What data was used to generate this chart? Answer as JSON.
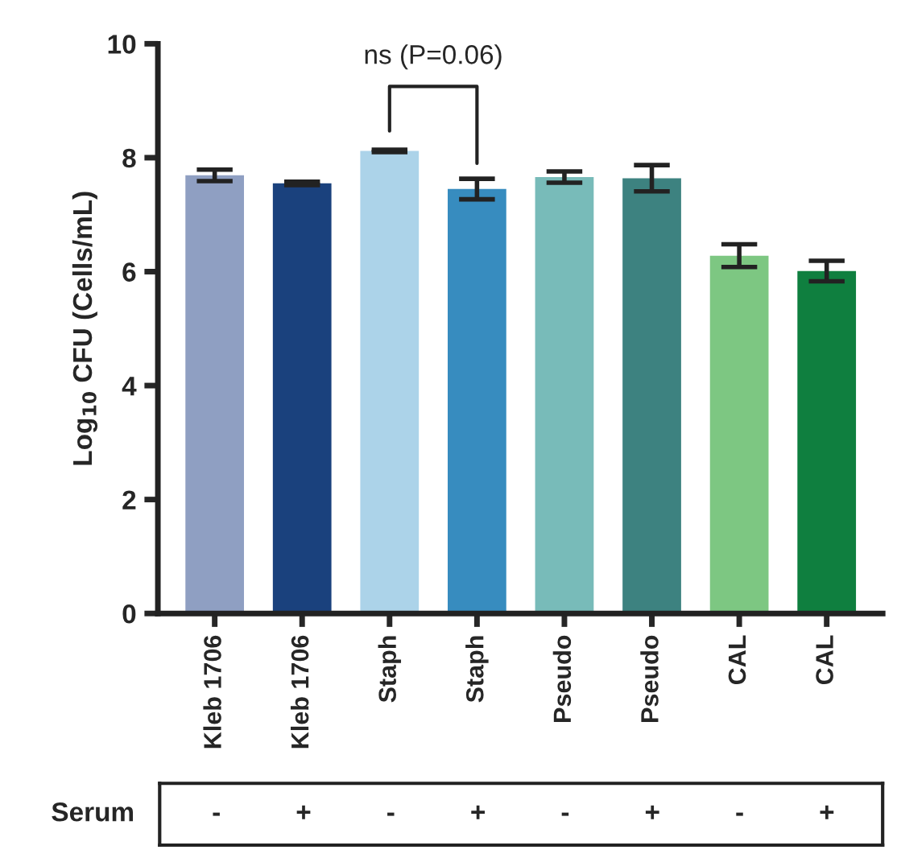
{
  "chart_data": {
    "type": "bar",
    "ylabel": "Log$_{10}$ CFU (Cells/mL)",
    "categories": [
      "Kleb 1706",
      "Kleb 1706",
      "Staph",
      "Staph",
      "Pseudo",
      "Pseudo",
      "CAL",
      "CAL"
    ],
    "values": [
      7.69,
      7.55,
      8.12,
      7.45,
      7.66,
      7.64,
      6.28,
      6.01
    ],
    "errors": [
      0.1,
      0.03,
      0.02,
      0.18,
      0.1,
      0.23,
      0.2,
      0.18
    ],
    "colors": [
      "#8f9fc2",
      "#1a417d",
      "#acd3e9",
      "#378cbf",
      "#78bbb9",
      "#3d8280",
      "#7dc782",
      "#0f7f3f"
    ],
    "ylim": [
      0,
      10
    ],
    "yticks": [
      0,
      2,
      4,
      6,
      8,
      10
    ],
    "grid": false,
    "legend": false,
    "annotations": [
      "ns (P=0.06)",
      "Serum",
      "-",
      "+",
      "-",
      "+",
      "-",
      "+",
      "-",
      "+"
    ]
  }
}
